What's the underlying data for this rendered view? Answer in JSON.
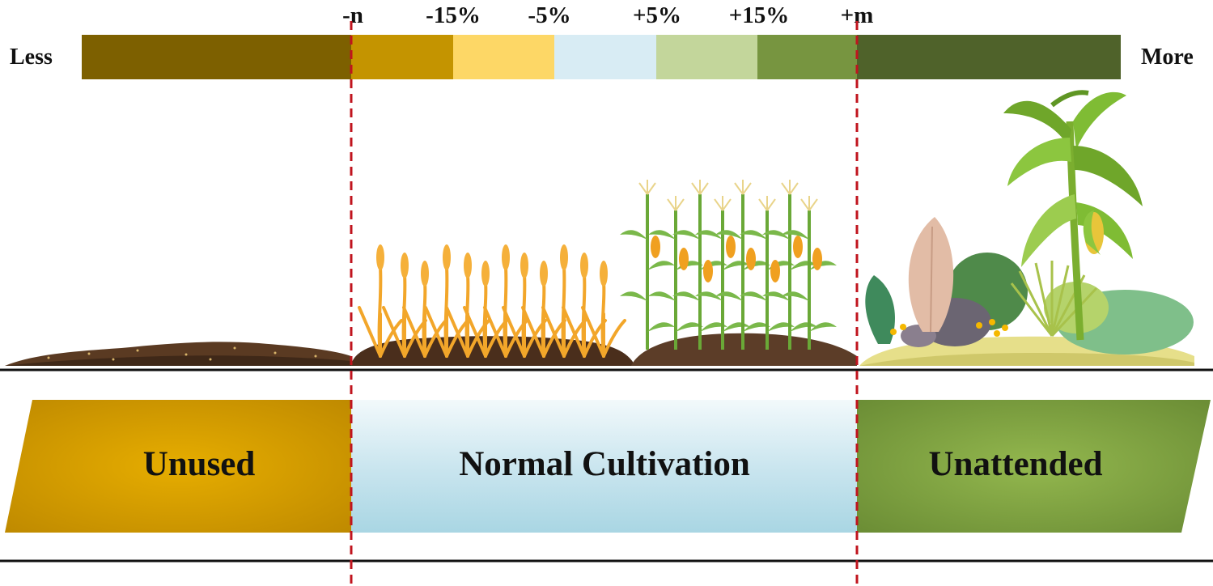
{
  "scale": {
    "left_label": "Less",
    "right_label": "More",
    "tick_labels": [
      "-n",
      "-15%",
      "-5%",
      "+5%",
      "+15%",
      "+m"
    ],
    "segment_colors": [
      "#7d6000",
      "#c49400",
      "#fdd766",
      "#d8ecf4",
      "#c3d69b",
      "#779540",
      "#4f622a"
    ]
  },
  "bands": [
    {
      "label": "Unused",
      "color": "#dca400"
    },
    {
      "label": "Normal Cultivation",
      "color": "#bfe0ea"
    },
    {
      "label": "Unattended",
      "color": "#86a846"
    }
  ],
  "colors": {
    "threshold_line": "#c0141e",
    "soil": "#5a3a22",
    "wheat": "#f2a62a",
    "corn_leaf": "#6aa837",
    "corn_cob": "#f0a020"
  }
}
